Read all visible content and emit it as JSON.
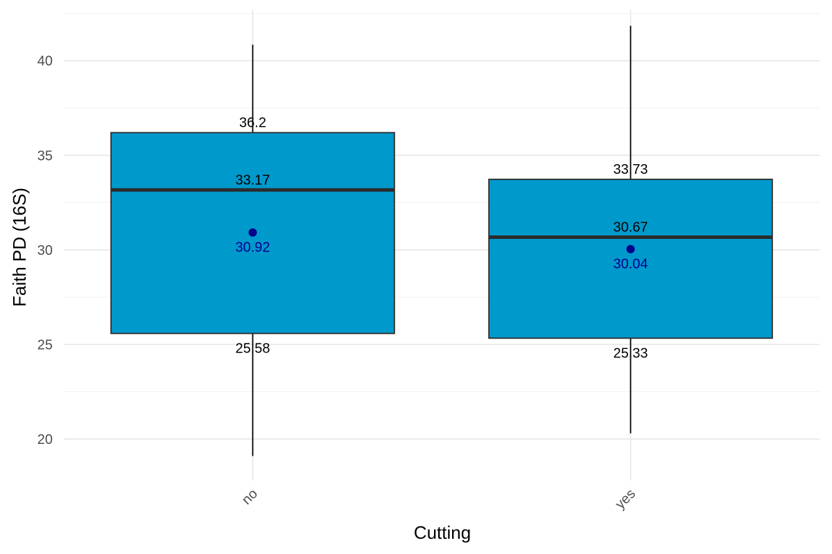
{
  "chart_data": {
    "type": "boxplot",
    "xlabel": "Cutting",
    "ylabel": "Faith PD (16S)",
    "ylim": [
      17.8,
      42.7
    ],
    "y_ticks": [
      20,
      25,
      30,
      35,
      40
    ],
    "y_tick_labels": [
      "20",
      "25",
      "30",
      "35",
      "40"
    ],
    "grid": true,
    "box_fill": "#0099cc",
    "box_stroke": "#2b2b2b",
    "mean_color": "#00008b",
    "categories": [
      "no",
      "yes"
    ],
    "boxes": [
      {
        "category": "no",
        "whisker_low": 19.1,
        "q1": 25.58,
        "median": 33.17,
        "q3": 36.2,
        "whisker_high": 40.85,
        "mean": 30.92,
        "labels": {
          "q3": "36.2",
          "median": "33.17",
          "mean": "30.92",
          "q1": "25.58"
        }
      },
      {
        "category": "yes",
        "whisker_low": 20.3,
        "q1": 25.33,
        "median": 30.67,
        "q3": 33.73,
        "whisker_high": 41.85,
        "mean": 30.04,
        "labels": {
          "q3": "33.73",
          "median": "30.67",
          "mean": "30.04",
          "q1": "25.33"
        }
      }
    ]
  }
}
